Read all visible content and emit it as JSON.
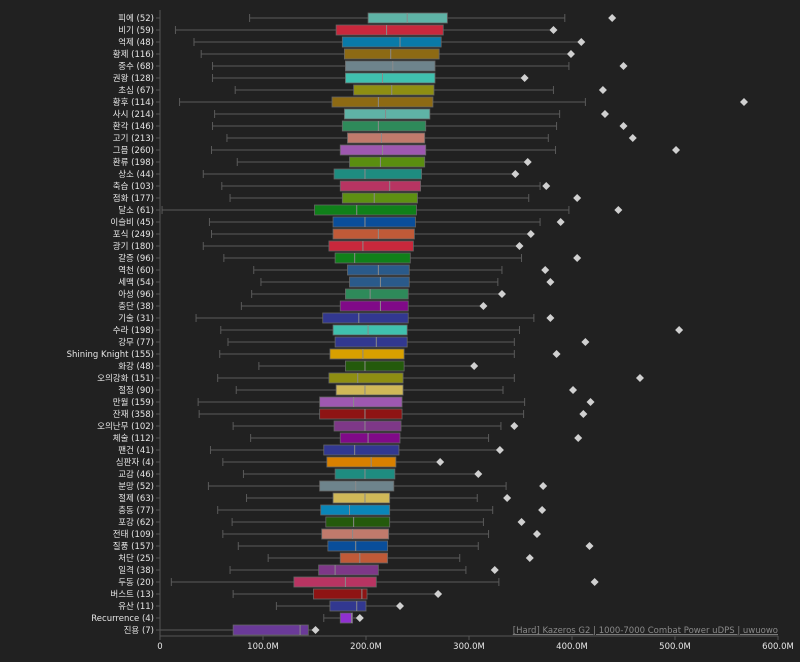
{
  "chart_data": {
    "type": "boxplot",
    "orientation": "horizontal",
    "title": "",
    "footer": "[Hard] Kazeros G2 | 1000-7000 Combat Power uDPS | uwuowo",
    "xlabel": "",
    "ylabel": "",
    "xlim": [
      0,
      600
    ],
    "x_unit": "M",
    "x_ticks": [
      0,
      100,
      200,
      300,
      400,
      500,
      600
    ],
    "x_tick_labels": [
      "0",
      "100.0M",
      "200.0M",
      "300.0M",
      "400.0M",
      "500.0M",
      "600.0M"
    ],
    "grid": false,
    "series": [
      {
        "label": "피에 (52)",
        "color": "#5fb3a6",
        "whisker_low": 87,
        "q1": 202,
        "median": 240,
        "q3": 279,
        "whisker_high": 393,
        "outliers": [
          439
        ]
      },
      {
        "label": "비기 (59)",
        "color": "#c8283c",
        "whisker_low": 15,
        "q1": 171,
        "median": 220,
        "q3": 275,
        "whisker_high": 382,
        "outliers": [
          382
        ]
      },
      {
        "label": "억제 (48)",
        "color": "#0a7aa8",
        "whisker_low": 33,
        "q1": 177,
        "median": 233,
        "q3": 273,
        "whisker_high": 409,
        "outliers": [
          409
        ]
      },
      {
        "label": "황제 (116)",
        "color": "#8d6a14",
        "whisker_low": 40,
        "q1": 179,
        "median": 224,
        "q3": 271,
        "whisker_high": 399,
        "outliers": [
          399
        ]
      },
      {
        "label": "중수 (68)",
        "color": "#6e848c",
        "whisker_low": 51,
        "q1": 180,
        "median": 226,
        "q3": 267,
        "whisker_high": 397,
        "outliers": [
          450
        ]
      },
      {
        "label": "권왕 (128)",
        "color": "#40c0ae",
        "whisker_low": 51,
        "q1": 180,
        "median": 216,
        "q3": 267,
        "whisker_high": 354,
        "outliers": [
          354
        ]
      },
      {
        "label": "초심 (67)",
        "color": "#8e8e12",
        "whisker_low": 73,
        "q1": 188,
        "median": 225,
        "q3": 266,
        "whisker_high": 382,
        "outliers": [
          430
        ]
      },
      {
        "label": "황후 (114)",
        "color": "#8d6a14",
        "whisker_low": 19,
        "q1": 167,
        "median": 212,
        "q3": 265,
        "whisker_high": 413,
        "outliers": [
          567
        ]
      },
      {
        "label": "사시 (214)",
        "color": "#5fb3a6",
        "whisker_low": 53,
        "q1": 179,
        "median": 219,
        "q3": 262,
        "whisker_high": 388,
        "outliers": [
          432
        ]
      },
      {
        "label": "환각 (146)",
        "color": "#2e8a5a",
        "whisker_low": 51,
        "q1": 177,
        "median": 212,
        "q3": 258,
        "whisker_high": 385,
        "outliers": [
          450
        ]
      },
      {
        "label": "고기 (213)",
        "color": "#c07a6c",
        "whisker_low": 65,
        "q1": 182,
        "median": 215,
        "q3": 257,
        "whisker_high": 377,
        "outliers": [
          459
        ]
      },
      {
        "label": "그믐 (260)",
        "color": "#9e58b0",
        "whisker_low": 50,
        "q1": 175,
        "median": 216,
        "q3": 258,
        "whisker_high": 384,
        "outliers": [
          501
        ]
      },
      {
        "label": "환류 (198)",
        "color": "#5a8e10",
        "whisker_low": 75,
        "q1": 184,
        "median": 214,
        "q3": 257,
        "whisker_high": 357,
        "outliers": [
          357
        ]
      },
      {
        "label": "상소 (44)",
        "color": "#1e8c80",
        "whisker_low": 42,
        "q1": 169,
        "median": 199,
        "q3": 254,
        "whisker_high": 345,
        "outliers": [
          345
        ]
      },
      {
        "label": "축습 (103)",
        "color": "#b83462",
        "whisker_low": 60,
        "q1": 175,
        "median": 223,
        "q3": 253,
        "whisker_high": 369,
        "outliers": [
          375
        ]
      },
      {
        "label": "점화 (177)",
        "color": "#5e9012",
        "whisker_low": 68,
        "q1": 177,
        "median": 208,
        "q3": 250,
        "whisker_high": 358,
        "outliers": [
          405
        ]
      },
      {
        "label": "달소 (61)",
        "color": "#10801a",
        "whisker_low": 2,
        "q1": 150,
        "median": 191,
        "q3": 249,
        "whisker_high": 397,
        "outliers": [
          445
        ]
      },
      {
        "label": "이슬비 (45)",
        "color": "#0a4e9a",
        "whisker_low": 48,
        "q1": 168,
        "median": 199,
        "q3": 248,
        "whisker_high": 369,
        "outliers": [
          389
        ]
      },
      {
        "label": "포식 (249)",
        "color": "#c05a38",
        "whisker_low": 50,
        "q1": 168,
        "median": 212,
        "q3": 247,
        "whisker_high": 360,
        "outliers": [
          360
        ]
      },
      {
        "label": "광기 (180)",
        "color": "#c8283c",
        "whisker_low": 42,
        "q1": 164,
        "median": 197,
        "q3": 246,
        "whisker_high": 349,
        "outliers": [
          349
        ]
      },
      {
        "label": "갈증 (96)",
        "color": "#10801a",
        "whisker_low": 62,
        "q1": 170,
        "median": 189,
        "q3": 243,
        "whisker_high": 351,
        "outliers": [
          405
        ]
      },
      {
        "label": "역천 (60)",
        "color": "#2a5a8a",
        "whisker_low": 91,
        "q1": 182,
        "median": 212,
        "q3": 242,
        "whisker_high": 332,
        "outliers": [
          374
        ]
      },
      {
        "label": "세맥 (54)",
        "color": "#2a5a8a",
        "whisker_low": 98,
        "q1": 184,
        "median": 214,
        "q3": 242,
        "whisker_high": 328,
        "outliers": [
          379
        ]
      },
      {
        "label": "아성 (96)",
        "color": "#2e8a5a",
        "whisker_low": 89,
        "q1": 180,
        "median": 204,
        "q3": 241,
        "whisker_high": 332,
        "outliers": [
          332
        ]
      },
      {
        "label": "충단 (38)",
        "color": "#800a88",
        "whisker_low": 79,
        "q1": 175,
        "median": 214,
        "q3": 241,
        "whisker_high": 314,
        "outliers": [
          314
        ]
      },
      {
        "label": "기술 (31)",
        "color": "#323890",
        "whisker_low": 35,
        "q1": 158,
        "median": 193,
        "q3": 241,
        "whisker_high": 363,
        "outliers": [
          379
        ]
      },
      {
        "label": "수라 (198)",
        "color": "#40c0ae",
        "whisker_low": 59,
        "q1": 168,
        "median": 202,
        "q3": 240,
        "whisker_high": 349,
        "outliers": [
          504
        ]
      },
      {
        "label": "강무 (77)",
        "color": "#323890",
        "whisker_low": 66,
        "q1": 170,
        "median": 210,
        "q3": 240,
        "whisker_high": 344,
        "outliers": [
          413
        ]
      },
      {
        "label": "Shining Knight (155)",
        "color": "#d8a000",
        "whisker_low": 58,
        "q1": 165,
        "median": 197,
        "q3": 237,
        "whisker_high": 344,
        "outliers": [
          385
        ]
      },
      {
        "label": "화강 (48)",
        "color": "#245a0c",
        "whisker_low": 96,
        "q1": 180,
        "median": 199,
        "q3": 237,
        "whisker_high": 305,
        "outliers": [
          305
        ]
      },
      {
        "label": "오의강화 (151)",
        "color": "#8e8e12",
        "whisker_low": 56,
        "q1": 164,
        "median": 192,
        "q3": 236,
        "whisker_high": 344,
        "outliers": [
          466
        ]
      },
      {
        "label": "절정 (90)",
        "color": "#d0b858",
        "whisker_low": 74,
        "q1": 171,
        "median": 199,
        "q3": 236,
        "whisker_high": 333,
        "outliers": [
          401
        ]
      },
      {
        "label": "만월 (159)",
        "color": "#9e58b0",
        "whisker_low": 37,
        "q1": 155,
        "median": 188,
        "q3": 235,
        "whisker_high": 354,
        "outliers": [
          418
        ]
      },
      {
        "label": "잔재 (358)",
        "color": "#8e1414",
        "whisker_low": 38,
        "q1": 155,
        "median": 199,
        "q3": 235,
        "whisker_high": 353,
        "outliers": [
          411
        ]
      },
      {
        "label": "오의난무 (102)",
        "color": "#7e3888",
        "whisker_low": 71,
        "q1": 169,
        "median": 199,
        "q3": 234,
        "whisker_high": 331,
        "outliers": [
          344
        ]
      },
      {
        "label": "체술 (112)",
        "color": "#800a88",
        "whisker_low": 88,
        "q1": 175,
        "median": 202,
        "q3": 233,
        "whisker_high": 319,
        "outliers": [
          406
        ]
      },
      {
        "label": "팬건 (41)",
        "color": "#323890",
        "whisker_low": 49,
        "q1": 159,
        "median": 189,
        "q3": 232,
        "whisker_high": 330,
        "outliers": [
          330
        ]
      },
      {
        "label": "심판자 (4)",
        "color": "#d88000",
        "whisker_low": 61,
        "q1": 162,
        "median": 205,
        "q3": 229,
        "whisker_high": 272,
        "outliers": [
          272
        ]
      },
      {
        "label": "교감 (46)",
        "color": "#1e8c80",
        "whisker_low": 81,
        "q1": 170,
        "median": 199,
        "q3": 228,
        "whisker_high": 309,
        "outliers": [
          309
        ]
      },
      {
        "label": "분망 (52)",
        "color": "#6e848c",
        "whisker_low": 47,
        "q1": 155,
        "median": 190,
        "q3": 227,
        "whisker_high": 336,
        "outliers": [
          372
        ]
      },
      {
        "label": "절제 (63)",
        "color": "#d0b858",
        "whisker_low": 84,
        "q1": 168,
        "median": 199,
        "q3": 223,
        "whisker_high": 308,
        "outliers": [
          337
        ]
      },
      {
        "label": "충동 (77)",
        "color": "#0a86b8",
        "whisker_low": 56,
        "q1": 156,
        "median": 184,
        "q3": 223,
        "whisker_high": 323,
        "outliers": [
          371
        ]
      },
      {
        "label": "포강 (62)",
        "color": "#245a0c",
        "whisker_low": 70,
        "q1": 161,
        "median": 188,
        "q3": 223,
        "whisker_high": 314,
        "outliers": [
          351
        ]
      },
      {
        "label": "전태 (109)",
        "color": "#c07a6c",
        "whisker_low": 61,
        "q1": 157,
        "median": 187,
        "q3": 222,
        "whisker_high": 319,
        "outliers": [
          366
        ]
      },
      {
        "label": "질풍 (157)",
        "color": "#0a4e9a",
        "whisker_low": 76,
        "q1": 163,
        "median": 190,
        "q3": 221,
        "whisker_high": 309,
        "outliers": [
          417
        ]
      },
      {
        "label": "처단 (25)",
        "color": "#c05a38",
        "whisker_low": 105,
        "q1": 175,
        "median": 194,
        "q3": 221,
        "whisker_high": 291,
        "outliers": [
          359
        ]
      },
      {
        "label": "일격 (38)",
        "color": "#7e3888",
        "whisker_low": 68,
        "q1": 154,
        "median": 170,
        "q3": 212,
        "whisker_high": 297,
        "outliers": [
          325
        ]
      },
      {
        "label": "두동 (20)",
        "color": "#b83462",
        "whisker_low": 11,
        "q1": 130,
        "median": 180,
        "q3": 210,
        "whisker_high": 329,
        "outliers": [
          422
        ]
      },
      {
        "label": "버스트 (13)",
        "color": "#8e1414",
        "whisker_low": 71,
        "q1": 149,
        "median": 196,
        "q3": 201,
        "whisker_high": 270,
        "outliers": [
          270
        ]
      },
      {
        "label": "유산 (11)",
        "color": "#323890",
        "whisker_low": 113,
        "q1": 165,
        "median": 191,
        "q3": 200,
        "whisker_high": 233,
        "outliers": [
          233
        ]
      },
      {
        "label": "Recurrence (4)",
        "color": "#9030d0",
        "whisker_low": 159,
        "q1": 175,
        "median": 186,
        "q3": 187,
        "whisker_high": 194,
        "outliers": [
          194
        ]
      },
      {
        "label": "진용 (7)",
        "color": "#6a3a98",
        "whisker_low": 0,
        "q1": 71,
        "median": 136,
        "q3": 144,
        "whisker_high": 151,
        "outliers": [
          151
        ]
      }
    ]
  }
}
